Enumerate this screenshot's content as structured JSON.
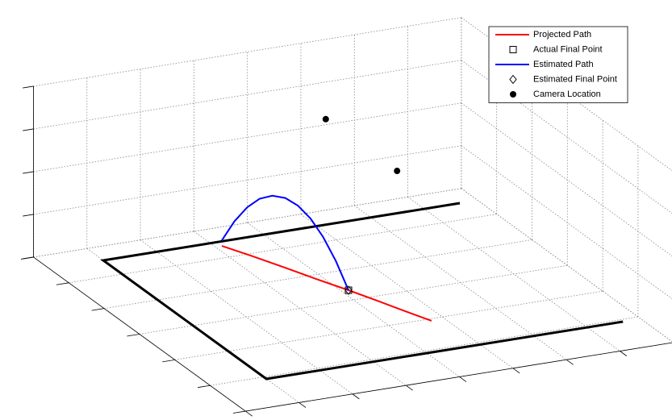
{
  "chart_data": {
    "type": "plot3d",
    "xlim": [
      -1.5,
      10.5
    ],
    "ylim": [
      -0.6,
      7.2
    ],
    "zlim": [
      0,
      4
    ],
    "xticks": [
      -1.5,
      0,
      1.5,
      3,
      4.5,
      6,
      7.5,
      9,
      10.5
    ],
    "yticks": [
      -0.6,
      0.7,
      2,
      3.3,
      4.6,
      5.9,
      7.2
    ],
    "zticks": [
      0,
      1,
      2,
      3,
      4
    ],
    "grid": true,
    "court": {
      "color": "#000000",
      "x": [
        10,
        0,
        0,
        10
      ],
      "y": [
        0,
        0,
        6,
        6
      ],
      "z": [
        0,
        0,
        0,
        0
      ]
    },
    "series": [
      {
        "name": "Projected Path",
        "color": "#ff0000",
        "marker": "line",
        "x": [
          3.18,
          3.55,
          3.94,
          4.31,
          4.69,
          5.02,
          5.32,
          5.63
        ],
        "y": [
          0.19,
          0.8,
          1.5,
          2.2,
          2.87,
          3.5,
          4.1,
          4.69
        ],
        "z": [
          0,
          0,
          0,
          0,
          0,
          0,
          0,
          0
        ]
      },
      {
        "name": "Actual Final Point",
        "color": "#000000",
        "marker": "square",
        "x": [
          4.69
        ],
        "y": [
          2.87
        ],
        "z": [
          0
        ]
      },
      {
        "name": "Estimated Path",
        "color": "#0000ff",
        "marker": "line",
        "x": [
          3.18,
          3.33,
          3.48,
          3.63,
          3.78,
          3.94,
          4.09,
          4.24,
          4.39,
          4.54,
          4.69
        ],
        "y": [
          0.19,
          0.46,
          0.73,
          0.99,
          1.26,
          1.53,
          1.8,
          2.07,
          2.33,
          2.6,
          2.87
        ],
        "z": [
          0.13,
          0.684,
          1.112,
          1.414,
          1.59,
          1.64,
          1.564,
          1.362,
          1.034,
          0.58,
          0
        ]
      },
      {
        "name": "Estimated Final Point",
        "color": "#000000",
        "marker": "diamond",
        "x": [
          4.69
        ],
        "y": [
          2.87
        ],
        "z": [
          0
        ]
      },
      {
        "name": "Camera Location",
        "color": "#000000",
        "marker": "dot",
        "x": [
          6.24,
          8.24
        ],
        "y": [
          0,
          0
        ],
        "z": [
          2.47,
          0.99
        ]
      }
    ],
    "legend": "northeast"
  }
}
